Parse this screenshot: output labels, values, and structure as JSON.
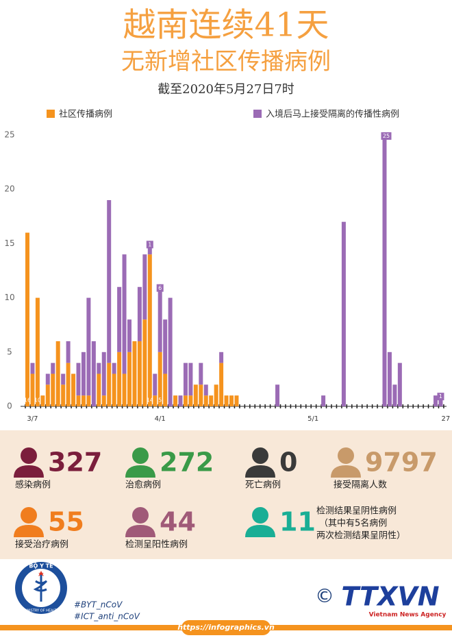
{
  "header": {
    "title": "越南连续41天",
    "subtitle": "无新增社区传播病例",
    "date": "截至2020年5月27日7时"
  },
  "chart_data": {
    "type": "bar",
    "categories": [
      null,
      "3/7",
      null,
      null,
      null,
      null,
      null,
      null,
      null,
      null,
      null,
      null,
      null,
      null,
      null,
      null,
      null,
      null,
      null,
      null,
      null,
      null,
      null,
      null,
      null,
      null,
      "4/1",
      null,
      null,
      null,
      null,
      null,
      null,
      null,
      null,
      null,
      null,
      null,
      null,
      null,
      null,
      null,
      null,
      null,
      null,
      null,
      null,
      null,
      null,
      null,
      null,
      null,
      null,
      null,
      null,
      null,
      "5/1",
      null,
      null,
      null,
      null,
      null,
      null,
      null,
      null,
      null,
      null,
      null,
      null,
      null,
      null,
      null,
      null,
      null,
      null,
      null,
      null,
      null,
      null,
      null,
      null,
      null,
      "27"
    ],
    "series": [
      {
        "name": "社区传播病例",
        "color": "#f5931e",
        "values": [
          16,
          3,
          10,
          1,
          2,
          3,
          6,
          2,
          4,
          3,
          1,
          1,
          1,
          0,
          3,
          1,
          4,
          3,
          5,
          3,
          5,
          6,
          6,
          8,
          14,
          1,
          5,
          3,
          0,
          1,
          0,
          1,
          1,
          2,
          2,
          1,
          1,
          2,
          4,
          1,
          1,
          1,
          0,
          0,
          0,
          0,
          0,
          0,
          0,
          0,
          0,
          0,
          0,
          0,
          0,
          0,
          0,
          0,
          0,
          0,
          0,
          0,
          0,
          0,
          0,
          0,
          0,
          0,
          0,
          0,
          0,
          0,
          0,
          0,
          0,
          0,
          0,
          0,
          0,
          0,
          0,
          0,
          0
        ],
        "value_labels": [
          "16",
          null,
          "10",
          null,
          null,
          null,
          null,
          null,
          null,
          null,
          null,
          null,
          null,
          null,
          null,
          null,
          null,
          null,
          null,
          null,
          null,
          null,
          null,
          null,
          "14",
          null,
          "5",
          null,
          null,
          null,
          null,
          null,
          null,
          null,
          null,
          null,
          null,
          null,
          null,
          null,
          null,
          null,
          null,
          null,
          null,
          null,
          null,
          null,
          null,
          null,
          null,
          null,
          null,
          null,
          null,
          null,
          null,
          null,
          null,
          null,
          null,
          null,
          null,
          null,
          null,
          null,
          null,
          null,
          null,
          null,
          null,
          null,
          null,
          null,
          null,
          null,
          null,
          null,
          null,
          null,
          null,
          null,
          null
        ]
      },
      {
        "name": "入境后马上接受隔离的传播性病例",
        "color": "#9b6bb5",
        "values": [
          0,
          1,
          0,
          0,
          1,
          1,
          0,
          1,
          2,
          0,
          3,
          4,
          9,
          6,
          1,
          4,
          15,
          1,
          6,
          11,
          3,
          0,
          5,
          6,
          1,
          2,
          6,
          5,
          10,
          0,
          1,
          3,
          3,
          0,
          2,
          1,
          0,
          0,
          1,
          0,
          0,
          0,
          0,
          0,
          0,
          0,
          0,
          0,
          0,
          2,
          0,
          0,
          0,
          0,
          0,
          0,
          0,
          0,
          1,
          0,
          0,
          0,
          17,
          0,
          0,
          0,
          0,
          0,
          0,
          0,
          25,
          5,
          2,
          4,
          0,
          0,
          0,
          0,
          0,
          0,
          1,
          1,
          0
        ],
        "value_labels": [
          null,
          null,
          null,
          null,
          null,
          null,
          null,
          null,
          null,
          null,
          null,
          null,
          null,
          null,
          null,
          null,
          null,
          null,
          null,
          null,
          null,
          null,
          null,
          null,
          "1",
          null,
          "6",
          null,
          null,
          null,
          null,
          null,
          null,
          null,
          null,
          null,
          null,
          null,
          null,
          null,
          null,
          null,
          null,
          null,
          null,
          null,
          null,
          null,
          null,
          null,
          null,
          null,
          null,
          null,
          null,
          null,
          null,
          null,
          null,
          null,
          null,
          null,
          null,
          null,
          null,
          null,
          null,
          null,
          null,
          null,
          "25",
          null,
          null,
          null,
          null,
          null,
          null,
          null,
          null,
          null,
          null,
          "1",
          null
        ]
      }
    ],
    "ylim": [
      0,
      25
    ],
    "yticks": [
      0,
      5,
      10,
      15,
      20,
      25
    ],
    "grid": false,
    "stacked": true
  },
  "stats": [
    {
      "value": 327,
      "label": [
        "感染病例"
      ],
      "color": "#7b1e3c"
    },
    {
      "value": 272,
      "label": [
        "治愈病例"
      ],
      "color": "#3a9a48"
    },
    {
      "value": 0,
      "label": [
        "死亡病例"
      ],
      "color": "#3a3a3a"
    },
    {
      "value": 9797,
      "label": [
        "接受隔离人数"
      ],
      "color": "#c89a6a"
    },
    {
      "value": 55,
      "label": [
        "接受治疗病例"
      ],
      "color": "#f07d1e"
    },
    {
      "value": 44,
      "label": [
        "检测呈阳性病例"
      ],
      "color": "#a05a78"
    },
    {
      "value": 11,
      "label": [
        "检测结果呈阴性病例",
        "（其中有5名病例",
        "两次检测结果呈阴性）"
      ],
      "color": "#1aae95"
    }
  ],
  "footer": {
    "logo": "BỘ Y TẾ",
    "logo_sub": "MINISTRY OF HEALTH",
    "hashtags": [
      "#BYT_nCoV",
      "#ICT_anti_nCoV"
    ],
    "agency": "TTXVN",
    "agency_sub": "Vietnam News Agency",
    "copyright": "©",
    "url": "https://infographics.vn"
  }
}
